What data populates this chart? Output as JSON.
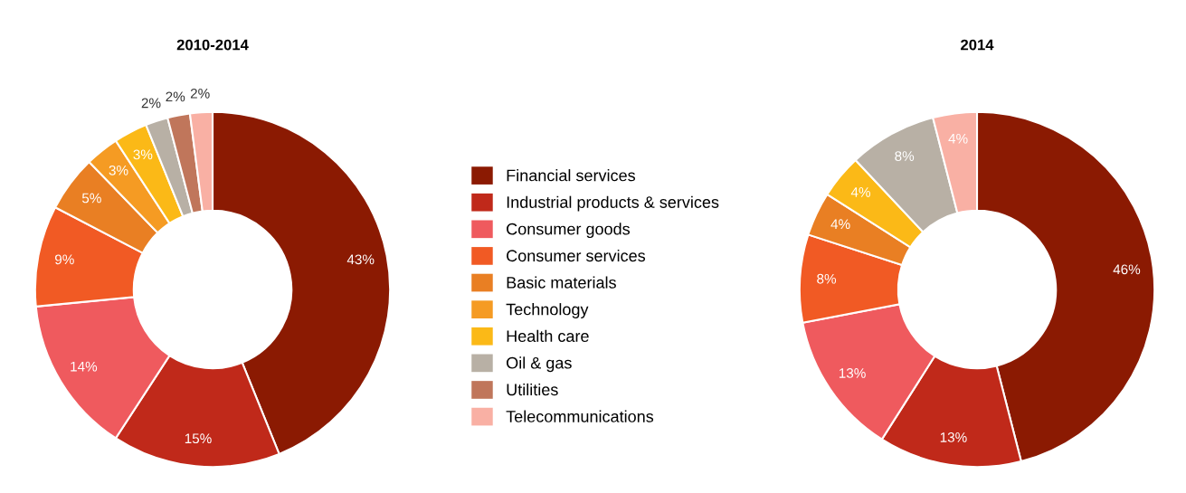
{
  "chart_data": [
    {
      "type": "donut",
      "title": "2010-2014",
      "legend": "right",
      "categories": [
        "Financial services",
        "Industrial products & services",
        "Consumer goods",
        "Consumer services",
        "Basic materials",
        "Technology",
        "Health care",
        "Oil & gas",
        "Utilities",
        "Telecommunications"
      ],
      "values": [
        43,
        15,
        14,
        9,
        5,
        3,
        3,
        2,
        2,
        2
      ],
      "colors": [
        "#8b1a02",
        "#c0291a",
        "#ef5a5e",
        "#f15a24",
        "#e97f23",
        "#f59b23",
        "#fbb917",
        "#b8b0a5",
        "#c0765b",
        "#f9b0a4"
      ],
      "value_labels": [
        "43%",
        "15%",
        "14%",
        "9%",
        "5%",
        "3%",
        "3%",
        "2%",
        "2%",
        "2%"
      ]
    },
    {
      "type": "donut",
      "title": "2014",
      "categories": [
        null,
        null,
        null,
        null,
        null,
        null,
        null,
        null,
        null,
        null
      ],
      "values": [
        46,
        13,
        13,
        8,
        4,
        null,
        4,
        8,
        null,
        4
      ],
      "colors": [
        "#8b1a02",
        "#c0291a",
        "#ef5a5e",
        "#f15a24",
        "#e97f23",
        "#f59b23",
        "#fbb917",
        "#b8b0a5",
        "#c0765b",
        "#f9b0a4"
      ],
      "value_labels": [
        "46%",
        "13%",
        "13%",
        "8%",
        "4%",
        null,
        "4%",
        "8%",
        null,
        "4%"
      ]
    }
  ]
}
